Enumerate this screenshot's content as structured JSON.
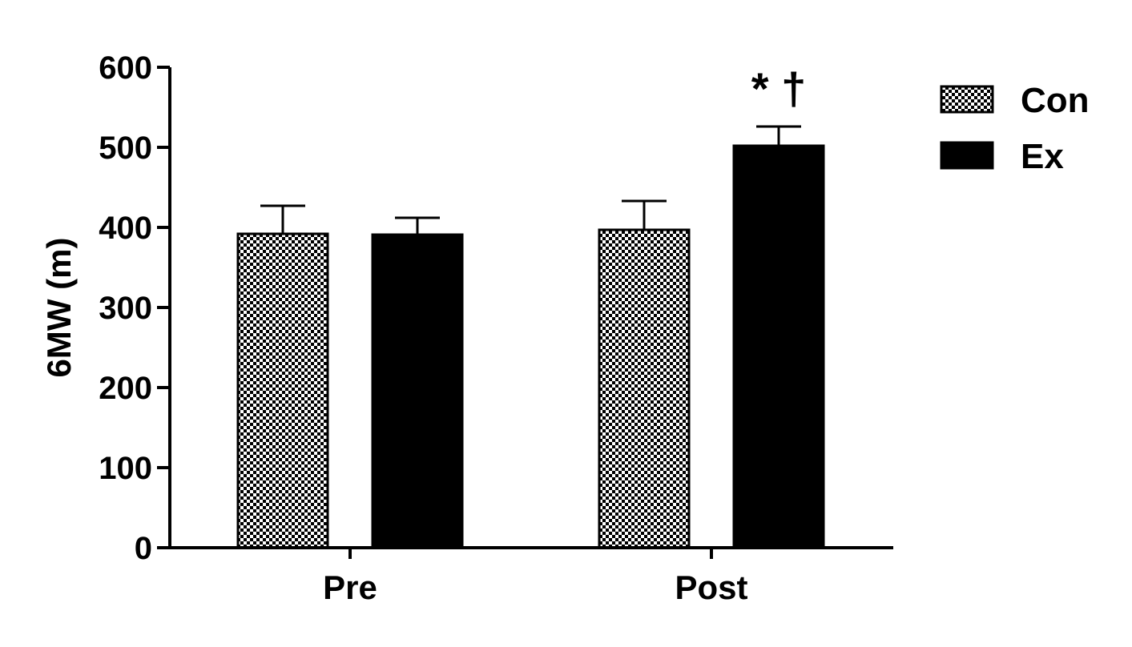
{
  "chart_data": {
    "type": "bar",
    "categories": [
      "Pre",
      "Post"
    ],
    "series": [
      {
        "name": "Con",
        "values": [
          392,
          397
        ],
        "errors": [
          35,
          36
        ],
        "fill": "checker"
      },
      {
        "name": "Ex",
        "values": [
          391,
          502
        ],
        "errors": [
          21,
          24
        ],
        "fill": "#000000"
      }
    ],
    "ylabel": "6MW (m)",
    "ylim": [
      0,
      600
    ],
    "yticks": [
      0,
      100,
      200,
      300,
      400,
      500,
      600
    ],
    "annotation": {
      "category": "Post",
      "text": "* †"
    },
    "legend_position": "top-right",
    "grid": false
  }
}
